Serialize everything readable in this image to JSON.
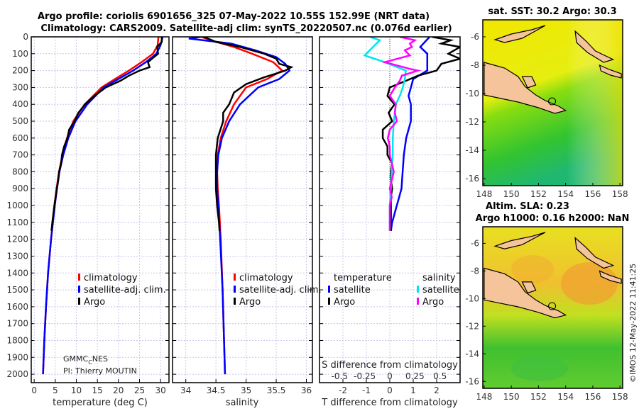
{
  "header": {
    "title_line1": "Argo profile: coriolis 6901656_325 07-May-2022 10.55S 152.99E (NRT data)",
    "title_line2": "Climatology: CARS2009. Satellite-adj clim: synTS_20220507.nc (0.076d earlier)"
  },
  "credits": {
    "line1": "GMMC",
    "line1_sub": "C",
    "line1_end": "NES",
    "line2": "PI: Thierry MOUTIN"
  },
  "watermark": "©IMOS 12-May-2022 11:41:25",
  "colors": {
    "climatology": "#ff0000",
    "satellite": "#0000ff",
    "argo": "#000000",
    "sal_sat": "#00e5ee",
    "sal_argo": "#ff00ff"
  },
  "chart_data": [
    {
      "type": "line",
      "id": "temperature",
      "xlabel": "temperature (deg C)",
      "ylabel": "depth",
      "xlim": [
        -0.7,
        32
      ],
      "ylim": [
        0,
        2050
      ],
      "yinverted": true,
      "grid": true,
      "xticks": [
        0,
        5,
        10,
        15,
        20,
        25,
        30
      ],
      "yticks": [
        0,
        100,
        200,
        300,
        400,
        500,
        600,
        700,
        800,
        900,
        1000,
        1100,
        1200,
        1300,
        1400,
        1500,
        1600,
        1700,
        1800,
        1900,
        2000
      ],
      "legend": {
        "placement": "lower-right",
        "entries": [
          "climatology",
          "satellite-adj. clim.",
          "Argo"
        ]
      },
      "series": [
        {
          "name": "climatology",
          "color": "#ff0000",
          "depth": [
            0,
            50,
            100,
            150,
            200,
            250,
            300,
            400,
            500,
            600,
            700,
            800,
            900,
            1000,
            1200,
            1400,
            1600,
            1800,
            2000
          ],
          "values": [
            29.5,
            29.3,
            28.2,
            25.5,
            22.5,
            19.2,
            16.0,
            12.0,
            9.3,
            7.8,
            6.7,
            5.9,
            5.3,
            4.8,
            4.0,
            3.3,
            2.8,
            2.4,
            2.1
          ]
        },
        {
          "name": "satellite-adj. clim.",
          "color": "#0000ff",
          "depth": [
            0,
            50,
            100,
            150,
            200,
            250,
            300,
            400,
            500,
            600,
            700,
            800,
            900,
            1000,
            1200,
            1400,
            1600,
            1800,
            2000
          ],
          "values": [
            30.5,
            30.0,
            29.0,
            26.5,
            23.5,
            20.0,
            16.5,
            12.6,
            9.8,
            8.1,
            6.9,
            6.0,
            5.4,
            4.9,
            4.0,
            3.3,
            2.8,
            2.4,
            2.1
          ]
        },
        {
          "name": "Argo",
          "color": "#000000",
          "depth": [
            0,
            30,
            60,
            100,
            150,
            180,
            200,
            230,
            260,
            300,
            350,
            400,
            450,
            500,
            550,
            600,
            650,
            700,
            750,
            800,
            850,
            900,
            950,
            1000,
            1100,
            1150
          ],
          "values": [
            30.3,
            30.3,
            29.2,
            29.4,
            27.0,
            27.4,
            25.0,
            22.5,
            20.5,
            17.0,
            14.3,
            12.1,
            10.5,
            9.6,
            8.3,
            7.9,
            7.1,
            6.6,
            6.4,
            5.9,
            5.7,
            5.4,
            5.1,
            4.8,
            4.3,
            4.1
          ]
        }
      ]
    },
    {
      "type": "line",
      "id": "salinity",
      "xlabel": "salinity",
      "ylabel": "depth",
      "xlim": [
        33.78,
        36.1
      ],
      "ylim": [
        0,
        2050
      ],
      "yinverted": true,
      "grid": true,
      "xticks": [
        34,
        34.5,
        35,
        35.5,
        36
      ],
      "legend": {
        "placement": "lower-right",
        "entries": [
          "climatology",
          "satellite-adj. clim.",
          "Argo"
        ]
      },
      "series": [
        {
          "name": "climatology",
          "color": "#ff0000",
          "depth": [
            0,
            30,
            60,
            100,
            150,
            200,
            250,
            300,
            400,
            500,
            600,
            700,
            800,
            900,
            1000,
            1200,
            1500,
            2000
          ],
          "values": [
            34.25,
            34.5,
            34.8,
            35.1,
            35.45,
            35.6,
            35.35,
            35.0,
            34.8,
            34.67,
            34.58,
            34.53,
            34.52,
            34.53,
            34.55,
            34.58,
            34.61,
            34.65
          ]
        },
        {
          "name": "satellite-adj. clim.",
          "color": "#0000ff",
          "depth": [
            0,
            10,
            40,
            80,
            120,
            160,
            200,
            250,
            300,
            400,
            500,
            600,
            700,
            800,
            900,
            1000,
            1200,
            1500,
            2000
          ],
          "values": [
            34.25,
            34.05,
            34.75,
            35.15,
            35.5,
            35.65,
            35.72,
            35.55,
            35.2,
            34.9,
            34.72,
            34.6,
            34.54,
            34.52,
            34.52,
            34.54,
            34.57,
            34.61,
            34.65
          ]
        },
        {
          "name": "Argo",
          "color": "#000000",
          "depth": [
            0,
            30,
            60,
            100,
            130,
            160,
            180,
            200,
            240,
            280,
            330,
            400,
            450,
            500,
            600,
            700,
            800,
            900,
            1000,
            1100,
            1150
          ],
          "values": [
            34.3,
            34.5,
            34.9,
            35.3,
            35.5,
            35.55,
            35.75,
            35.65,
            35.3,
            35.0,
            34.8,
            34.72,
            34.62,
            34.62,
            34.53,
            34.5,
            34.5,
            34.5,
            34.52,
            34.55,
            34.56
          ]
        }
      ]
    },
    {
      "type": "line",
      "id": "differences",
      "xlabel": "T difference from climatology",
      "x2label": "S difference from climatology",
      "xlim": [
        -3.0,
        3.0
      ],
      "x2lim": [
        -0.7,
        0.7
      ],
      "ylim": [
        0,
        2050
      ],
      "yinverted": true,
      "grid": true,
      "xticks": [
        -2,
        -1,
        0,
        1,
        2
      ],
      "x2ticks": [
        -0.5,
        -0.25,
        0,
        0.25,
        0.5
      ],
      "x2ticklabels": [
        "-0.5",
        "-0.25",
        "0",
        "0.25",
        "0.5"
      ],
      "legend": {
        "placement": "lower",
        "temperature_title": "temperature",
        "salinity_title": "salinity",
        "entries": [
          "satellite",
          "Argo",
          "satellite",
          "Argo"
        ]
      },
      "series": [
        {
          "name": "T satellite",
          "axis": "T",
          "color": "#0000ff",
          "depth": [
            0,
            30,
            60,
            100,
            150,
            200,
            250,
            300,
            350,
            400,
            500,
            600,
            700,
            800,
            900,
            1000,
            1100,
            1150
          ],
          "values": [
            1.7,
            1.5,
            1.3,
            1.6,
            1.6,
            1.6,
            1.0,
            0.9,
            0.8,
            0.9,
            0.9,
            0.7,
            0.6,
            0.55,
            0.5,
            0.3,
            0.1,
            0.05
          ]
        },
        {
          "name": "T Argo",
          "axis": "T",
          "color": "#000000",
          "depth": [
            0,
            20,
            40,
            60,
            100,
            130,
            160,
            200,
            230,
            260,
            300,
            350,
            400,
            450,
            500,
            550,
            600,
            650,
            700,
            750,
            800,
            850,
            900,
            950,
            1000,
            1100,
            1150
          ],
          "values": [
            1.8,
            2.6,
            2.2,
            3.0,
            2.5,
            3.0,
            2.2,
            2.0,
            1.2,
            0.7,
            0.0,
            -0.1,
            0.2,
            -0.05,
            0.1,
            -0.3,
            -0.3,
            -0.1,
            -0.1,
            0.1,
            0.05,
            0.05,
            0.1,
            0.05,
            0.05,
            0.05,
            0.05
          ]
        },
        {
          "name": "S satellite",
          "axis": "S",
          "color": "#00e5ee",
          "depth": [
            0,
            20,
            50,
            80,
            110,
            150,
            200,
            250,
            300,
            350,
            400,
            500,
            600,
            700,
            800,
            900,
            1000,
            1100,
            1150
          ],
          "values": [
            -0.2,
            -0.1,
            -0.15,
            -0.2,
            -0.25,
            -0.05,
            0.16,
            0.15,
            0.13,
            0.1,
            0.06,
            0.04,
            0.03,
            0.03,
            0.02,
            0.01,
            0.0,
            0.0,
            0.0
          ]
        },
        {
          "name": "S Argo",
          "axis": "S",
          "color": "#ff00ff",
          "depth": [
            0,
            20,
            40,
            60,
            80,
            110,
            150,
            190,
            200,
            230,
            260,
            300,
            350,
            400,
            450,
            500,
            550,
            600,
            650,
            700,
            750,
            800,
            850,
            900,
            950,
            1000,
            1100,
            1150
          ],
          "values": [
            0.1,
            0.25,
            0.2,
            0.22,
            0.15,
            0.2,
            -0.05,
            0.2,
            0.28,
            0.12,
            0.1,
            0.05,
            0.0,
            0.06,
            0.05,
            0.07,
            0.0,
            -0.02,
            0.0,
            0.0,
            0.02,
            0.04,
            0.02,
            0.0,
            0.02,
            0.0,
            0.0,
            0.0
          ]
        }
      ]
    },
    {
      "type": "heatmap",
      "id": "sst_map",
      "title": "sat. SST: 30.2 Argo: 30.3",
      "xlim": [
        147.9,
        158.2
      ],
      "ylim": [
        -16.5,
        -4.8
      ],
      "xticks": [
        148,
        150,
        152,
        154,
        156,
        158
      ],
      "yticks": [
        -6,
        -8,
        -10,
        -12,
        -14,
        -16
      ]
    },
    {
      "type": "heatmap",
      "id": "sla_map",
      "title_line1": "Altim. SLA: 0.23",
      "title_line2": "Argo h1000: 0.16 h2000: NaN",
      "xlim": [
        147.9,
        158.2
      ],
      "ylim": [
        -16.5,
        -4.8
      ],
      "yticks": [
        -6,
        -8,
        -10,
        -12,
        -14,
        -16
      ],
      "xticks": [
        148,
        150,
        152,
        154,
        156,
        158
      ]
    }
  ]
}
